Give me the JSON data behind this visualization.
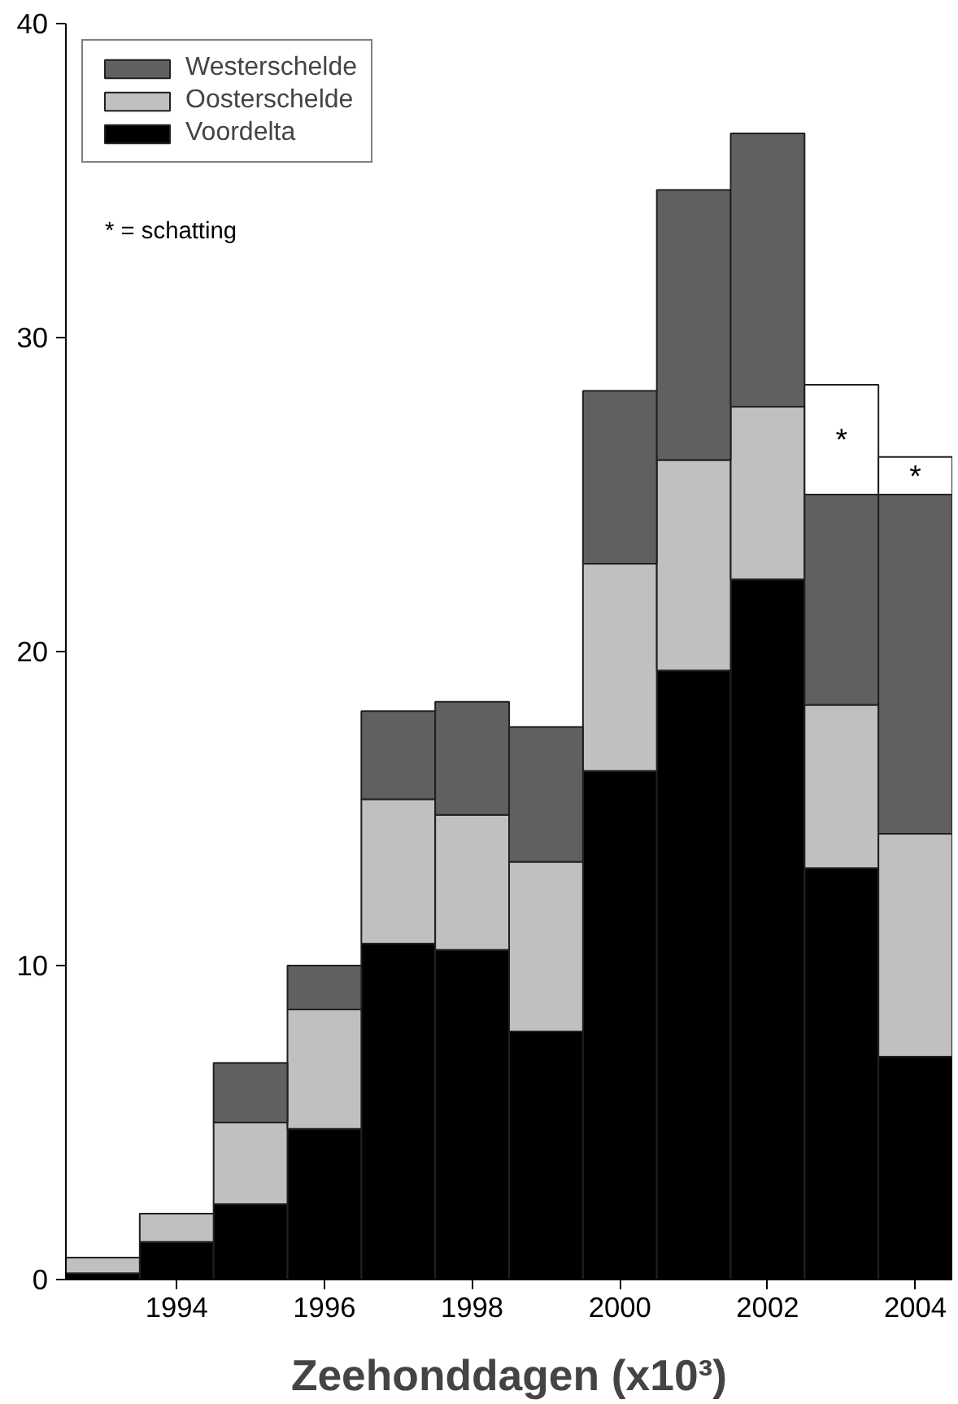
{
  "chart_data": {
    "type": "bar",
    "stacked": true,
    "xlabel": "Zeehonddagen (x10³)",
    "x": [
      1993,
      1994,
      1995,
      1996,
      1997,
      1998,
      1999,
      2000,
      2001,
      2002,
      2003,
      2004
    ],
    "xlim": [
      1992.5,
      2004.5
    ],
    "xticks": [
      1994,
      1996,
      1998,
      2000,
      2002,
      2004
    ],
    "ylim": [
      0,
      40
    ],
    "yticks": [
      0,
      10,
      20,
      30,
      40
    ],
    "grid": false,
    "legend": "top left",
    "series": [
      {
        "name": "Voordelta",
        "color": "#000000",
        "values": [
          0.2,
          1.2,
          2.4,
          4.8,
          10.7,
          10.5,
          7.9,
          16.2,
          19.4,
          22.3,
          13.1,
          7.1
        ]
      },
      {
        "name": "Oosterschelde",
        "color": "#c0c0c0",
        "values": [
          0.5,
          0.9,
          2.6,
          3.8,
          4.6,
          4.3,
          5.4,
          6.6,
          6.7,
          5.5,
          5.2,
          7.1
        ]
      },
      {
        "name": "Westerschelde",
        "color": "#606060",
        "values": [
          null,
          null,
          1.9,
          1.4,
          2.8,
          3.6,
          4.3,
          5.5,
          8.6,
          8.7,
          6.7,
          10.8
        ]
      },
      {
        "color": "#ffffff",
        "values": [
          null,
          null,
          null,
          null,
          null,
          null,
          null,
          null,
          null,
          null,
          3.5,
          1.2
        ],
        "value_labels": [
          null,
          null,
          null,
          null,
          null,
          null,
          null,
          null,
          null,
          null,
          "*",
          "*"
        ]
      }
    ],
    "annotations": [
      "* = schatting"
    ]
  }
}
